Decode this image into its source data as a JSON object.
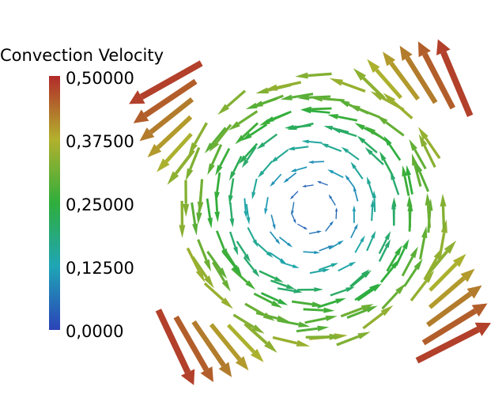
{
  "legend": {
    "title": "Convection Velocity",
    "ticks": [
      "0,50000",
      "0,37500",
      "0,25000",
      "0,12500",
      "0,0000"
    ],
    "range": [
      0.0,
      0.5
    ],
    "colormap": [
      "#2b43b8",
      "#1e9fbd",
      "#2fae3c",
      "#a7b52b",
      "#c7492c",
      "#b0262a"
    ]
  },
  "field": {
    "type": "vector-glyphs",
    "pattern": "vortex, counter-clockwise",
    "max_value": 0.5
  }
}
